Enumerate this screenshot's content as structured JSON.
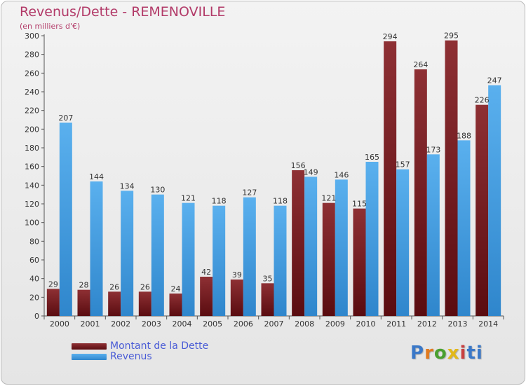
{
  "header": {
    "title": "Revenus/Dette - REMENOVILLE",
    "subtitle": "(en milliers d'€)"
  },
  "legend": {
    "dette_label": "Montant de la Dette",
    "revenus_label": "Revenus"
  },
  "logo": {
    "text": "Proxiti"
  },
  "colors": {
    "dette": "#7a1e22",
    "revenus": "#4aa3e6",
    "axis": "#555555",
    "text": "#333333"
  },
  "chart_data": {
    "type": "bar",
    "title": "Revenus/Dette - REMENOVILLE",
    "ylabel": "(en milliers d'€)",
    "xlabel": "",
    "ylim": [
      0,
      300
    ],
    "yticks": [
      0,
      20,
      40,
      60,
      80,
      100,
      120,
      140,
      160,
      180,
      200,
      220,
      240,
      260,
      280,
      300
    ],
    "grid": false,
    "legend_position": "bottom-left",
    "categories": [
      "2000",
      "2001",
      "2002",
      "2003",
      "2004",
      "2005",
      "2006",
      "2007",
      "2008",
      "2009",
      "2010",
      "2011",
      "2012",
      "2013",
      "2014"
    ],
    "series": [
      {
        "name": "Montant de la Dette",
        "values": [
          29,
          28,
          26,
          26,
          24,
          42,
          39,
          35,
          156,
          121,
          115,
          294,
          264,
          295,
          226
        ]
      },
      {
        "name": "Revenus",
        "values": [
          207,
          144,
          134,
          130,
          121,
          118,
          127,
          118,
          149,
          146,
          165,
          157,
          173,
          188,
          247
        ]
      }
    ]
  }
}
